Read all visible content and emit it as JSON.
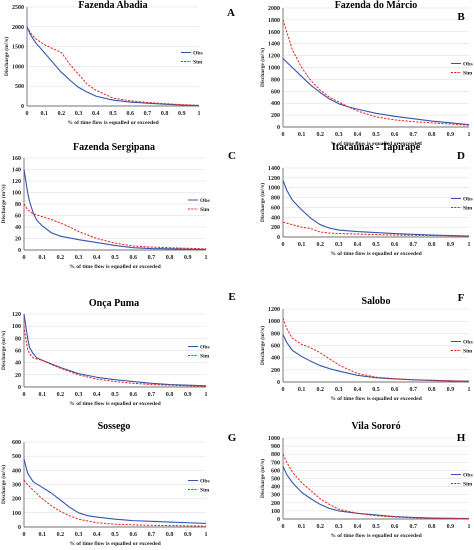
{
  "colors": {
    "obs": "#3355aa",
    "sim": "#e8201a",
    "grid": "#d9d9d9",
    "axis": "#444444"
  },
  "chart_data": [
    {
      "letter": "A",
      "title": "Fazenda Abadia",
      "type": "line",
      "xlabel": "% of time flow is equalled or exceeded",
      "ylabel": "Discharge (m³/s)",
      "xlim": [
        0,
        1
      ],
      "ylim": [
        0,
        2500
      ],
      "xticks": [
        "0",
        "0.1",
        "0.2",
        "0.3",
        "0.4",
        "0.5",
        "0.6",
        "0.7",
        "0.8",
        "0.9",
        "1"
      ],
      "yticks": [
        0,
        500,
        1000,
        1500,
        2000,
        2500
      ],
      "legend": [
        "Obs",
        "Sim"
      ],
      "series": [
        {
          "name": "Obs",
          "style": "solid",
          "x": [
            0,
            0.02,
            0.05,
            0.1,
            0.15,
            0.2,
            0.25,
            0.3,
            0.35,
            0.4,
            0.5,
            0.6,
            0.7,
            0.8,
            0.9,
            1
          ],
          "y": [
            2000,
            1800,
            1600,
            1350,
            1100,
            850,
            650,
            470,
            350,
            250,
            150,
            100,
            70,
            45,
            25,
            10
          ]
        },
        {
          "name": "Sim",
          "style": "dashed",
          "x": [
            0,
            0.02,
            0.05,
            0.1,
            0.15,
            0.2,
            0.25,
            0.3,
            0.35,
            0.4,
            0.5,
            0.6,
            0.7,
            0.8,
            0.9,
            1
          ],
          "y": [
            2000,
            1850,
            1700,
            1550,
            1450,
            1350,
            1050,
            800,
            550,
            400,
            200,
            130,
            90,
            60,
            35,
            15
          ]
        }
      ]
    },
    {
      "letter": "B",
      "title": "Fazenda do Márcio",
      "type": "line",
      "xlabel": "% of time flow is equalled or exceeded",
      "ylabel": "Discharge (m³/s)",
      "xlim": [
        0,
        1
      ],
      "ylim": [
        0,
        2000
      ],
      "xticks": [
        "0",
        "0.1",
        "0.2",
        "0.3",
        "0.4",
        "0.5",
        "0.6",
        "0.7",
        "0.8",
        "0.9",
        "1"
      ],
      "yticks": [
        0,
        200,
        400,
        600,
        800,
        1000,
        1200,
        1400,
        1600,
        1800,
        2000
      ],
      "legend": [
        "Obs",
        "Sim"
      ],
      "series": [
        {
          "name": "Obs",
          "style": "solid",
          "x": [
            0,
            0.05,
            0.1,
            0.15,
            0.2,
            0.25,
            0.3,
            0.35,
            0.4,
            0.5,
            0.6,
            0.7,
            0.8,
            0.9,
            1
          ],
          "y": [
            1150,
            1000,
            850,
            700,
            580,
            470,
            390,
            340,
            300,
            230,
            180,
            140,
            100,
            70,
            40
          ]
        },
        {
          "name": "Sim",
          "style": "dashed",
          "x": [
            0,
            0.02,
            0.05,
            0.1,
            0.15,
            0.2,
            0.25,
            0.3,
            0.35,
            0.4,
            0.5,
            0.6,
            0.7,
            0.8,
            0.9,
            1
          ],
          "y": [
            1800,
            1600,
            1300,
            1000,
            780,
            620,
            500,
            420,
            340,
            270,
            170,
            120,
            90,
            70,
            50,
            30
          ]
        }
      ]
    },
    {
      "letter": "C",
      "title": "Fazenda Sergipana",
      "type": "line",
      "xlabel": "% of time flow is equalled or exceeded",
      "ylabel": "Discharge (m³/s)",
      "xlim": [
        0,
        1
      ],
      "ylim": [
        0,
        160
      ],
      "xticks": [
        "0",
        "0.1",
        "0.2",
        "0.3",
        "0.4",
        "0.5",
        "0.6",
        "0.7",
        "0.8",
        "0.9",
        "1"
      ],
      "yticks": [
        0,
        20,
        40,
        60,
        80,
        100,
        120,
        140,
        160
      ],
      "legend": [
        "Obs",
        "Sim"
      ],
      "series": [
        {
          "name": "Obs",
          "style": "solid",
          "x": [
            0,
            0.01,
            0.02,
            0.03,
            0.05,
            0.07,
            0.1,
            0.15,
            0.2,
            0.3,
            0.4,
            0.5,
            0.6,
            0.7,
            0.8,
            0.9,
            1
          ],
          "y": [
            140,
            120,
            100,
            85,
            65,
            52,
            42,
            30,
            24,
            18,
            13,
            8,
            4,
            2.5,
            2,
            1.5,
            1
          ]
        },
        {
          "name": "Sim",
          "style": "dashed",
          "x": [
            0,
            0.02,
            0.05,
            0.1,
            0.15,
            0.2,
            0.25,
            0.3,
            0.4,
            0.5,
            0.6,
            0.7,
            0.8,
            0.9,
            1
          ],
          "y": [
            80,
            70,
            63,
            58,
            53,
            47,
            40,
            32,
            20,
            12,
            7,
            5,
            4,
            3,
            2
          ]
        }
      ]
    },
    {
      "letter": "D",
      "title": "Itacaúnas - Tapirapé",
      "type": "line",
      "xlabel": "% of time flow is equalled or exceeded",
      "ylabel": "Discharge (m³/s)",
      "xlim": [
        0,
        1
      ],
      "ylim": [
        0,
        1400
      ],
      "xticks": [
        "0",
        "0.1",
        "0.2",
        "0.3",
        "0.4",
        "0.5",
        "0.6",
        "0.7",
        "0.8",
        "0.9",
        "1"
      ],
      "yticks": [
        0,
        200,
        400,
        600,
        800,
        1000,
        1200,
        1400
      ],
      "legend": [
        "Obs",
        "Sim"
      ],
      "series": [
        {
          "name": "Obs",
          "style": "solid",
          "x": [
            0,
            0.02,
            0.05,
            0.1,
            0.15,
            0.2,
            0.25,
            0.3,
            0.4,
            0.5,
            0.6,
            0.7,
            0.8,
            0.9,
            1
          ],
          "y": [
            1150,
            950,
            750,
            550,
            380,
            250,
            180,
            140,
            110,
            90,
            70,
            55,
            40,
            30,
            20
          ]
        },
        {
          "name": "Sim",
          "style": "dashed",
          "x": [
            0,
            0.05,
            0.1,
            0.15,
            0.2,
            0.25,
            0.3,
            0.4,
            0.5,
            0.6,
            0.7,
            0.8,
            0.9,
            1
          ],
          "y": [
            300,
            250,
            200,
            170,
            100,
            80,
            70,
            60,
            50,
            40,
            35,
            30,
            25,
            20
          ]
        }
      ]
    },
    {
      "letter": "E",
      "title": "Onça Puma",
      "type": "line",
      "xlabel": "% of time flow is equalled or exceeded",
      "ylabel": "Discharge (m³/s)",
      "xlim": [
        0,
        1
      ],
      "ylim": [
        0,
        120
      ],
      "xticks": [
        "0",
        "0.1",
        "0.2",
        "0.3",
        "0.4",
        "0.5",
        "0.6",
        "0.7",
        "0.8",
        "0.9",
        "1"
      ],
      "yticks": [
        0,
        20,
        40,
        60,
        80,
        100,
        120
      ],
      "legend": [
        "Obs",
        "Sim"
      ],
      "series": [
        {
          "name": "Obs",
          "style": "solid",
          "x": [
            0,
            0.01,
            0.02,
            0.03,
            0.05,
            0.07,
            0.1,
            0.15,
            0.2,
            0.3,
            0.4,
            0.5,
            0.6,
            0.7,
            0.8,
            0.9,
            1
          ],
          "y": [
            120,
            100,
            80,
            65,
            55,
            48,
            44,
            38,
            32,
            22,
            16,
            12,
            9,
            6,
            4,
            3,
            2
          ]
        },
        {
          "name": "Sim",
          "style": "dashed",
          "x": [
            0,
            0.01,
            0.02,
            0.03,
            0.05,
            0.07,
            0.1,
            0.15,
            0.2,
            0.3,
            0.4,
            0.5,
            0.6,
            0.7,
            0.8,
            0.9,
            1
          ],
          "y": [
            100,
            80,
            62,
            55,
            48,
            46,
            44,
            37,
            31,
            20,
            13,
            9,
            6,
            4,
            3,
            2,
            1
          ]
        }
      ]
    },
    {
      "letter": "F",
      "title": "Salobo",
      "type": "line",
      "xlabel": "% of time flow is equalled or exceeded",
      "ylabel": "Discharge (m³/s)",
      "xlim": [
        0,
        1
      ],
      "ylim": [
        0,
        1200
      ],
      "xticks": [
        "0",
        "0.1",
        "0.2",
        "0.3",
        "0.4",
        "0.5",
        "0.6",
        "0.7",
        "0.8",
        "0.9",
        "1"
      ],
      "yticks": [
        0,
        200,
        400,
        600,
        800,
        1000,
        1200
      ],
      "legend": [
        "Obs",
        "Sim"
      ],
      "series": [
        {
          "name": "Obs",
          "style": "solid",
          "x": [
            0,
            0.02,
            0.05,
            0.1,
            0.15,
            0.2,
            0.25,
            0.3,
            0.4,
            0.5,
            0.6,
            0.7,
            0.8,
            0.9,
            1
          ],
          "y": [
            780,
            650,
            520,
            420,
            340,
            270,
            220,
            180,
            110,
            70,
            50,
            35,
            25,
            18,
            12
          ]
        },
        {
          "name": "Sim",
          "style": "dashed",
          "x": [
            0,
            0.02,
            0.05,
            0.1,
            0.15,
            0.2,
            0.25,
            0.3,
            0.4,
            0.5,
            0.6,
            0.7,
            0.8,
            0.9,
            1
          ],
          "y": [
            1050,
            880,
            720,
            620,
            560,
            480,
            380,
            280,
            140,
            80,
            55,
            40,
            30,
            20,
            15
          ]
        }
      ]
    },
    {
      "letter": "G",
      "title": "Sossego",
      "type": "line",
      "xlabel": "% of time flow is equalled or exceeded",
      "ylabel": "Discharge (m³/s)",
      "xlim": [
        0,
        1
      ],
      "ylim": [
        0,
        600
      ],
      "xticks": [
        "0",
        "0.1",
        "0.2",
        "0.3",
        "0.4",
        "0.5",
        "0.6",
        "0.7",
        "0.8",
        "0.9",
        "1"
      ],
      "yticks": [
        0,
        100,
        200,
        300,
        400,
        500,
        600
      ],
      "legend": [
        "Obs",
        "Sim"
      ],
      "series": [
        {
          "name": "Obs",
          "style": "solid",
          "x": [
            0,
            0.01,
            0.02,
            0.05,
            0.1,
            0.15,
            0.2,
            0.25,
            0.3,
            0.35,
            0.4,
            0.5,
            0.6,
            0.7,
            0.8,
            0.9,
            1
          ],
          "y": [
            480,
            430,
            380,
            320,
            280,
            240,
            190,
            140,
            100,
            80,
            70,
            55,
            45,
            40,
            35,
            30,
            25
          ]
        },
        {
          "name": "Sim",
          "style": "dashed",
          "x": [
            0,
            0.02,
            0.05,
            0.1,
            0.15,
            0.2,
            0.25,
            0.3,
            0.4,
            0.5,
            0.6,
            0.7,
            0.8,
            0.9,
            1
          ],
          "y": [
            330,
            300,
            260,
            200,
            150,
            110,
            80,
            55,
            30,
            20,
            15,
            12,
            10,
            8,
            6
          ]
        }
      ]
    },
    {
      "letter": "H",
      "title": "Vila Sororó",
      "type": "line",
      "xlabel": "% of time flow is equalled or exceeded",
      "ylabel": "Discharge (m³/s)",
      "xlim": [
        0,
        1
      ],
      "ylim": [
        0,
        1000
      ],
      "xticks": [
        "0",
        "0.1",
        "0.2",
        "0.3",
        "0.4",
        "0.5",
        "0.6",
        "0.7",
        "0.8",
        "0.9",
        "1"
      ],
      "yticks": [
        0,
        100,
        200,
        300,
        400,
        500,
        600,
        700,
        800,
        900,
        1000
      ],
      "legend": [
        "Obs",
        "Sim"
      ],
      "series": [
        {
          "name": "Obs",
          "style": "solid",
          "x": [
            0,
            0.02,
            0.05,
            0.1,
            0.15,
            0.2,
            0.25,
            0.3,
            0.4,
            0.5,
            0.6,
            0.7,
            0.8,
            0.9,
            1
          ],
          "y": [
            650,
            550,
            450,
            330,
            250,
            180,
            130,
            100,
            70,
            50,
            30,
            20,
            12,
            8,
            5
          ]
        },
        {
          "name": "Sim",
          "style": "dashed",
          "x": [
            0,
            0.02,
            0.05,
            0.1,
            0.15,
            0.2,
            0.25,
            0.3,
            0.4,
            0.5,
            0.6,
            0.7,
            0.8,
            0.9,
            1
          ],
          "y": [
            800,
            700,
            580,
            450,
            350,
            250,
            180,
            120,
            70,
            40,
            25,
            15,
            10,
            7,
            4
          ]
        }
      ]
    }
  ]
}
